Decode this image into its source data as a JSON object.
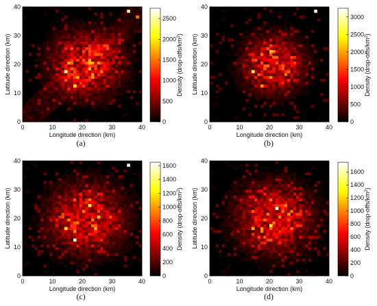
{
  "chart_data": [
    {
      "type": "heatmap",
      "panel_label": "(a)",
      "xlabel": "Longitude direction (km)",
      "ylabel": "Latitude direction (km)",
      "colorbar_label": "Density (drop-offs/km",
      "colorbar_label_sup": "2",
      "colorbar_label_end": ")",
      "xlim": [
        0,
        40
      ],
      "ylim": [
        0,
        40
      ],
      "xticks": [
        "0",
        "10",
        "20",
        "30",
        "40"
      ],
      "yticks": [
        "0",
        "10",
        "20",
        "30",
        "40"
      ],
      "color_range": [
        0,
        2750
      ],
      "colorbar_ticks": [
        "0",
        "500",
        "1000",
        "1500",
        "2000",
        "2500"
      ],
      "colormap": "hot",
      "hotspots": [
        {
          "x": 14.5,
          "y": 17.5,
          "value": 2500
        },
        {
          "x": 17.5,
          "y": 12.5,
          "value": 2000
        },
        {
          "x": 35.5,
          "y": 38.5,
          "value": 2300
        },
        {
          "x": 38.5,
          "y": 36.5,
          "value": 1500
        },
        {
          "x": 20.5,
          "y": 24.5,
          "value": 1300
        },
        {
          "x": 23.5,
          "y": 19.5,
          "value": 1200
        }
      ]
    },
    {
      "type": "heatmap",
      "panel_label": "(b)",
      "xlabel": "Longitude direction (km)",
      "ylabel": "Latitude direction (km)",
      "colorbar_label": "Density (drop-offs/km",
      "colorbar_label_sup": "2",
      "colorbar_label_end": ")",
      "xlim": [
        0,
        40
      ],
      "ylim": [
        0,
        40
      ],
      "xticks": [
        "0",
        "10",
        "20",
        "30",
        "40"
      ],
      "yticks": [
        "0",
        "10",
        "20",
        "30",
        "40"
      ],
      "color_range": [
        0,
        3250
      ],
      "colorbar_ticks": [
        "0",
        "500",
        "1000",
        "1500",
        "2000",
        "2500",
        "3000"
      ],
      "colormap": "hot",
      "hotspots": [
        {
          "x": 35.5,
          "y": 38.5,
          "value": 3100
        },
        {
          "x": 14.5,
          "y": 17.5,
          "value": 2700
        },
        {
          "x": 20.5,
          "y": 24.5,
          "value": 2100
        },
        {
          "x": 17.5,
          "y": 12.5,
          "value": 1900
        },
        {
          "x": 22.5,
          "y": 20.5,
          "value": 1600
        }
      ]
    },
    {
      "type": "heatmap",
      "panel_label": "(c)",
      "xlabel": "Longitude direction (km)",
      "ylabel": "Latitude direction (km)",
      "colorbar_label": "Density (drop-offs/km",
      "colorbar_label_sup": "2",
      "colorbar_label_end": ")",
      "xlim": [
        0,
        40
      ],
      "ylim": [
        0,
        40
      ],
      "xticks": [
        "0",
        "10",
        "20",
        "30",
        "40"
      ],
      "yticks": [
        "0",
        "10",
        "20",
        "30",
        "40"
      ],
      "color_range": [
        0,
        1650
      ],
      "colorbar_ticks": [
        "0",
        "200",
        "400",
        "600",
        "800",
        "1000",
        "1200",
        "1400",
        "1600"
      ],
      "colormap": "hot",
      "hotspots": [
        {
          "x": 35.5,
          "y": 38.5,
          "value": 1600
        },
        {
          "x": 17.5,
          "y": 12.5,
          "value": 1550
        },
        {
          "x": 22.5,
          "y": 24.5,
          "value": 1300
        },
        {
          "x": 14.5,
          "y": 16.5,
          "value": 1200
        },
        {
          "x": 25.5,
          "y": 20.5,
          "value": 1100
        }
      ]
    },
    {
      "type": "heatmap",
      "panel_label": "(d)",
      "xlabel": "Longitude direction (km)",
      "ylabel": "Latitude direction (km)",
      "colorbar_label": "Density (drop-offs/km",
      "colorbar_label_sup": "2",
      "colorbar_label_end": ")",
      "xlim": [
        0,
        40
      ],
      "ylim": [
        0,
        40
      ],
      "xticks": [
        "0",
        "10",
        "20",
        "30",
        "40"
      ],
      "yticks": [
        "0",
        "10",
        "20",
        "30",
        "40"
      ],
      "color_range": [
        0,
        1750
      ],
      "colorbar_ticks": [
        "0",
        "200",
        "400",
        "600",
        "800",
        "1000",
        "1200",
        "1400",
        "1600"
      ],
      "colormap": "hot",
      "hotspots": [
        {
          "x": 22.5,
          "y": 23.5,
          "value": 1700
        },
        {
          "x": 20.5,
          "y": 17.5,
          "value": 1300
        },
        {
          "x": 14.5,
          "y": 16.5,
          "value": 1100
        },
        {
          "x": 26.5,
          "y": 21.5,
          "value": 1000
        }
      ]
    }
  ]
}
